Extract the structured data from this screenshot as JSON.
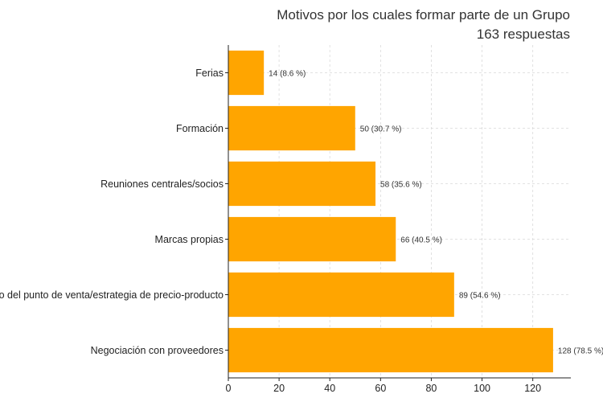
{
  "chart_data": {
    "type": "bar",
    "orientation": "horizontal",
    "title": "Motivos por los cuales formar parte de un Grupo",
    "subtitle": "163 respuestas",
    "categories": [
      "Ferias",
      "Formación",
      "Reuniones centrales/socios",
      "Marcas propias",
      "Desarrollo del punto de venta/estrategia de precio-producto",
      "Negociación con proveedores"
    ],
    "values": [
      14,
      50,
      58,
      66,
      89,
      128
    ],
    "data_labels": [
      "14 (8.6 %)",
      "50 (30.7 %)",
      "58 (35.6 %)",
      "66 (40.5 %)",
      "89 (54.6 %)",
      "128 (78.5 %)"
    ],
    "xlim": [
      0,
      135
    ],
    "x_ticks": [
      0,
      20,
      40,
      60,
      80,
      100,
      120
    ],
    "xlabel": "",
    "ylabel": "",
    "grid": true,
    "bar_color": "#FFA500"
  }
}
